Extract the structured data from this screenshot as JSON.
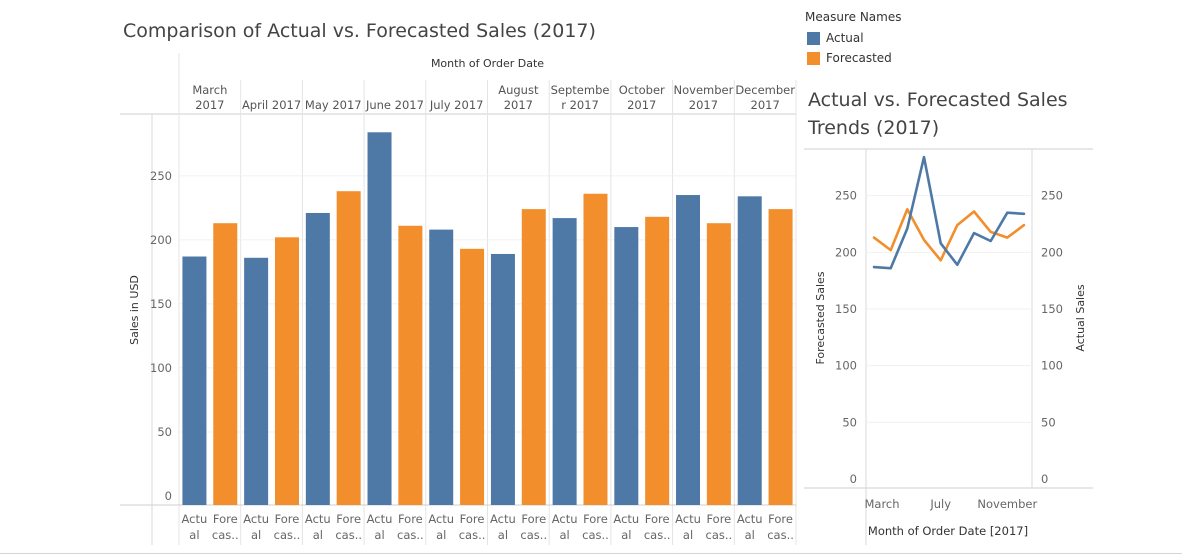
{
  "bar_chart": {
    "title": "Comparison of Actual vs. Forecasted Sales (2017)",
    "column_header": "Month of Order Date",
    "ylabel": "Sales in USD",
    "yticks": [
      0,
      50,
      100,
      150,
      200,
      250
    ],
    "ylim": [
      0,
      285
    ],
    "month_labels": [
      [
        "March",
        "2017"
      ],
      [
        "April 2017"
      ],
      [
        "May 2017"
      ],
      [
        "June 2017"
      ],
      [
        "July 2017"
      ],
      [
        "August",
        "2017"
      ],
      [
        "Septembe",
        "r 2017"
      ],
      [
        "October",
        "2017"
      ],
      [
        "November",
        "2017"
      ],
      [
        "December",
        "2017"
      ]
    ],
    "bar_labels": [
      [
        "Actu",
        "al"
      ],
      [
        "Fore",
        "cas.."
      ]
    ]
  },
  "line_chart": {
    "title": "Actual vs. Forecasted Sales Trends (2017)",
    "ylabel_left": "Forecasted Sales",
    "ylabel_right": "Actual Sales",
    "xlabel": "Month of Order Date [2017]",
    "xtick_labels": [
      "March",
      "July",
      "November"
    ],
    "yticks": [
      0,
      50,
      100,
      150,
      200,
      250
    ],
    "ylim": [
      0,
      285
    ]
  },
  "legend": {
    "title": "Measure Names",
    "items": [
      {
        "label": "Actual",
        "color": "#4e79a7"
      },
      {
        "label": "Forecasted",
        "color": "#f28e2b"
      }
    ]
  },
  "chart_data": [
    {
      "type": "bar",
      "title": "Comparison of Actual vs. Forecasted Sales (2017)",
      "categories": [
        "March 2017",
        "April 2017",
        "May 2017",
        "June 2017",
        "July 2017",
        "August 2017",
        "September 2017",
        "October 2017",
        "November 2017",
        "December 2017"
      ],
      "series": [
        {
          "name": "Actual",
          "color": "#4e79a7",
          "values": [
            187,
            186,
            221,
            284,
            208,
            189,
            217,
            210,
            235,
            234
          ]
        },
        {
          "name": "Forecasted",
          "color": "#f28e2b",
          "values": [
            213,
            202,
            238,
            211,
            193,
            224,
            236,
            218,
            213,
            224
          ]
        }
      ],
      "xlabel": "Month of Order Date",
      "ylabel": "Sales in USD",
      "ylim": [
        0,
        285
      ],
      "legend": "top-right"
    },
    {
      "type": "line",
      "title": "Actual vs. Forecasted Sales Trends (2017)",
      "x": [
        "March",
        "April",
        "May",
        "June",
        "July",
        "August",
        "September",
        "October",
        "November",
        "December"
      ],
      "series": [
        {
          "name": "Actual",
          "color": "#4e79a7",
          "values": [
            187,
            186,
            221,
            284,
            208,
            189,
            217,
            210,
            235,
            234
          ]
        },
        {
          "name": "Forecasted",
          "color": "#f28e2b",
          "values": [
            213,
            202,
            238,
            211,
            193,
            224,
            236,
            218,
            213,
            224
          ]
        }
      ],
      "xlabel": "Month of Order Date [2017]",
      "ylabel": "Forecasted Sales",
      "ylabel_right": "Actual Sales",
      "ylim": [
        0,
        285
      ]
    }
  ]
}
